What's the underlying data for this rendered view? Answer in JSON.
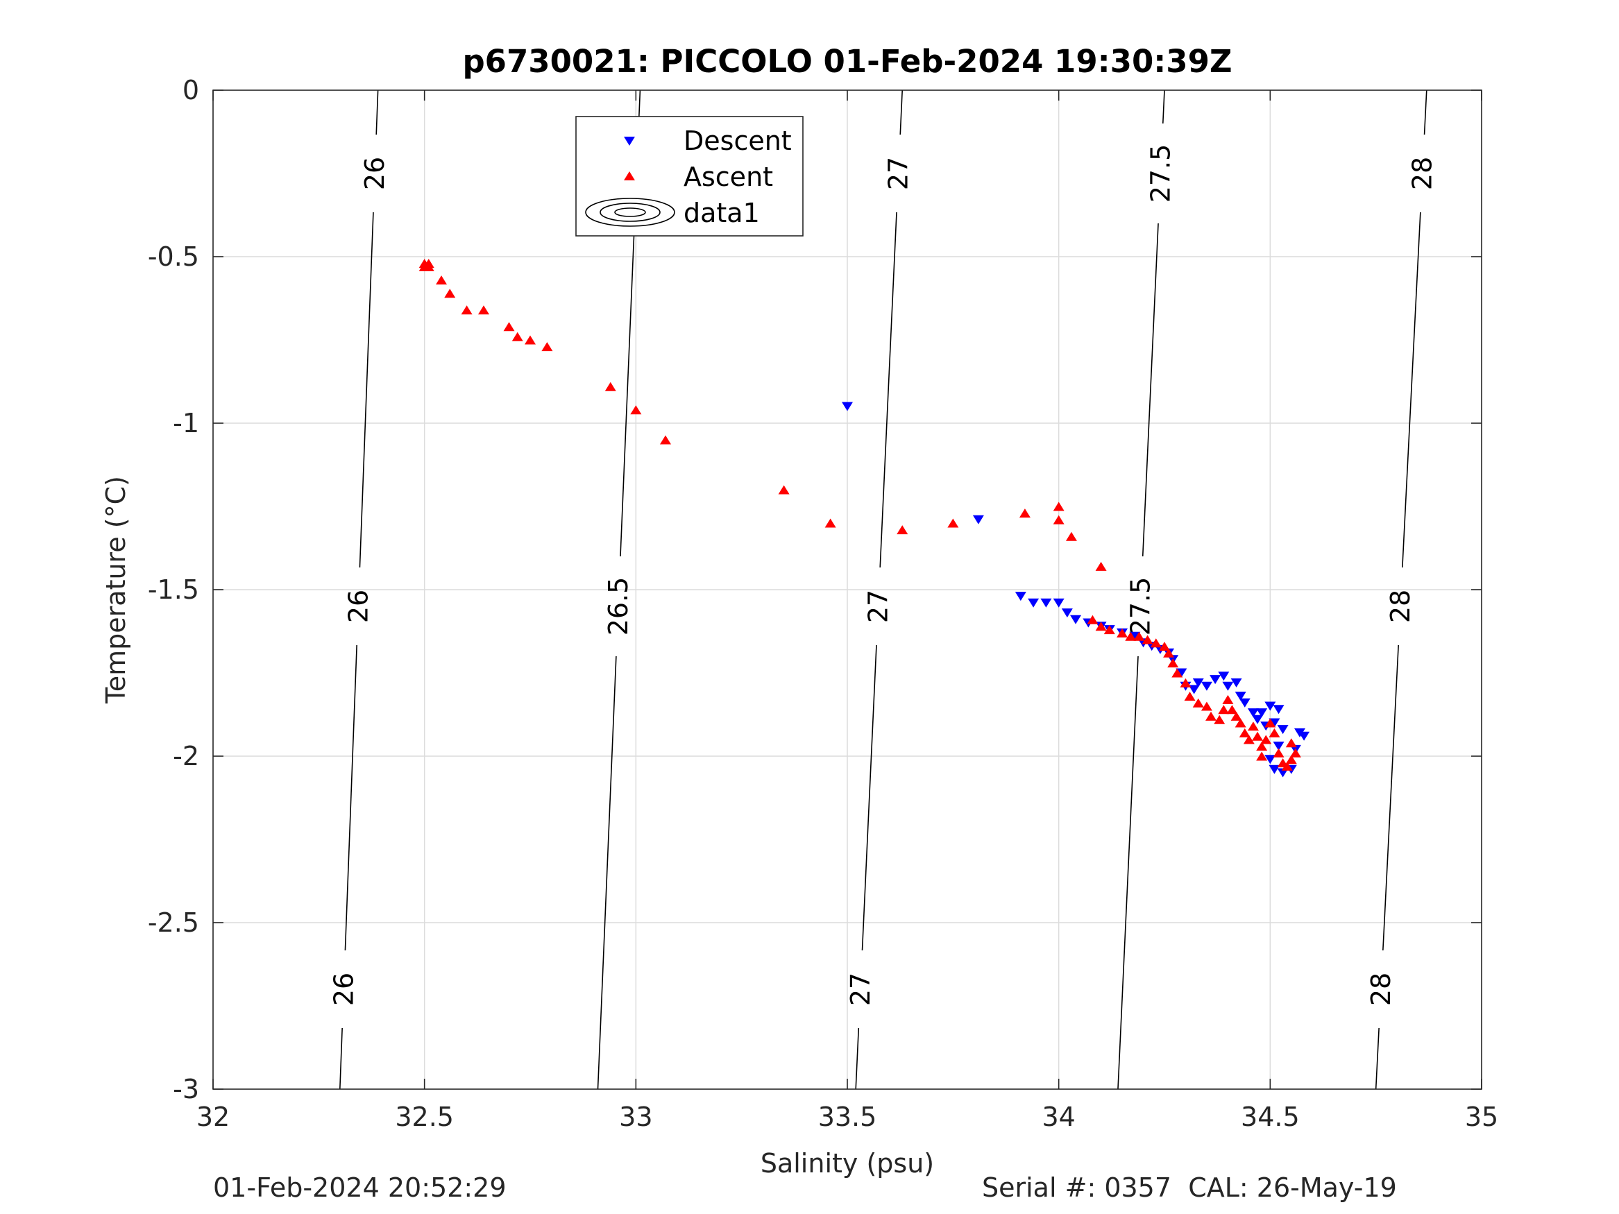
{
  "chart_data": {
    "type": "scatter",
    "title": "p6730021: PICCOLO 01-Feb-2024 19:30:39Z",
    "xlabel": "Salinity (psu)",
    "ylabel": "Temperature (°C)",
    "xlim": [
      32,
      35
    ],
    "ylim": [
      -3,
      0
    ],
    "xticks": [
      32,
      32.5,
      33,
      33.5,
      34,
      34.5,
      35
    ],
    "xtick_labels": [
      "32",
      "32.5",
      "33",
      "33.5",
      "34",
      "34.5",
      "35"
    ],
    "yticks": [
      0,
      -0.5,
      -1,
      -1.5,
      -2,
      -2.5,
      -3
    ],
    "ytick_labels": [
      "0",
      "-0.5",
      "-1",
      "-1.5",
      "-2",
      "-2.5",
      "-3"
    ],
    "grid": true,
    "legend_position": "top-center",
    "legend": [
      {
        "name": "Descent",
        "marker": "triangle-down",
        "color": "#0000ff"
      },
      {
        "name": "Ascent",
        "marker": "triangle-up",
        "color": "#ff0000"
      },
      {
        "name": "data1",
        "marker": "contour",
        "color": "#000000"
      }
    ],
    "isopycnals": [
      {
        "label": "26",
        "top_s": 32.39,
        "bottom_s": 32.3,
        "label_temps": [
          -0.25,
          -1.55,
          -2.7
        ]
      },
      {
        "label": "26.5",
        "top_s": 33.01,
        "bottom_s": 32.91,
        "label_temps": [
          -0.25,
          -1.55
        ]
      },
      {
        "label": "27",
        "top_s": 33.63,
        "bottom_s": 33.52,
        "label_temps": [
          -0.25,
          -1.55,
          -2.7
        ]
      },
      {
        "label": "27.5",
        "top_s": 34.25,
        "bottom_s": 34.14,
        "label_temps": [
          -0.25,
          -1.55
        ]
      },
      {
        "label": "28",
        "top_s": 34.87,
        "bottom_s": 34.75,
        "label_temps": [
          -0.25,
          -1.55,
          -2.7
        ]
      }
    ],
    "series": [
      {
        "name": "Descent",
        "marker": "triangle-down",
        "color": "#0000ff",
        "points": [
          [
            33.5,
            -0.95
          ],
          [
            33.81,
            -1.29
          ],
          [
            33.91,
            -1.52
          ],
          [
            33.94,
            -1.54
          ],
          [
            33.97,
            -1.54
          ],
          [
            34.0,
            -1.54
          ],
          [
            34.02,
            -1.57
          ],
          [
            34.04,
            -1.59
          ],
          [
            34.07,
            -1.6
          ],
          [
            34.1,
            -1.61
          ],
          [
            34.12,
            -1.62
          ],
          [
            34.15,
            -1.63
          ],
          [
            34.18,
            -1.64
          ],
          [
            34.2,
            -1.66
          ],
          [
            34.22,
            -1.67
          ],
          [
            34.24,
            -1.68
          ],
          [
            34.26,
            -1.69
          ],
          [
            34.27,
            -1.71
          ],
          [
            34.29,
            -1.75
          ],
          [
            34.3,
            -1.79
          ],
          [
            34.32,
            -1.8
          ],
          [
            34.33,
            -1.78
          ],
          [
            34.35,
            -1.79
          ],
          [
            34.37,
            -1.77
          ],
          [
            34.39,
            -1.76
          ],
          [
            34.4,
            -1.79
          ],
          [
            34.42,
            -1.78
          ],
          [
            34.43,
            -1.82
          ],
          [
            34.44,
            -1.84
          ],
          [
            34.46,
            -1.87
          ],
          [
            34.47,
            -1.89
          ],
          [
            34.48,
            -1.87
          ],
          [
            34.49,
            -1.91
          ],
          [
            34.5,
            -1.85
          ],
          [
            34.51,
            -1.9
          ],
          [
            34.52,
            -1.86
          ],
          [
            34.53,
            -1.92
          ],
          [
            34.52,
            -1.97
          ],
          [
            34.5,
            -2.01
          ],
          [
            34.51,
            -2.04
          ],
          [
            34.53,
            -2.05
          ],
          [
            34.55,
            -2.04
          ],
          [
            34.56,
            -1.98
          ],
          [
            34.57,
            -1.93
          ],
          [
            34.58,
            -1.94
          ]
        ]
      },
      {
        "name": "Ascent",
        "marker": "triangle-up",
        "color": "#ff0000",
        "points": [
          [
            32.5,
            -0.52
          ],
          [
            32.51,
            -0.53
          ],
          [
            32.5,
            -0.53
          ],
          [
            32.51,
            -0.52
          ],
          [
            32.54,
            -0.57
          ],
          [
            32.56,
            -0.61
          ],
          [
            32.6,
            -0.66
          ],
          [
            32.64,
            -0.66
          ],
          [
            32.7,
            -0.71
          ],
          [
            32.72,
            -0.74
          ],
          [
            32.75,
            -0.75
          ],
          [
            32.79,
            -0.77
          ],
          [
            32.94,
            -0.89
          ],
          [
            33.0,
            -0.96
          ],
          [
            33.07,
            -1.05
          ],
          [
            33.35,
            -1.2
          ],
          [
            33.46,
            -1.3
          ],
          [
            33.63,
            -1.32
          ],
          [
            33.75,
            -1.3
          ],
          [
            33.92,
            -1.27
          ],
          [
            34.0,
            -1.25
          ],
          [
            34.0,
            -1.29
          ],
          [
            34.03,
            -1.34
          ],
          [
            34.1,
            -1.43
          ],
          [
            34.08,
            -1.59
          ],
          [
            34.1,
            -1.61
          ],
          [
            34.12,
            -1.62
          ],
          [
            34.15,
            -1.63
          ],
          [
            34.17,
            -1.64
          ],
          [
            34.19,
            -1.64
          ],
          [
            34.21,
            -1.65
          ],
          [
            34.23,
            -1.66
          ],
          [
            34.25,
            -1.67
          ],
          [
            34.26,
            -1.69
          ],
          [
            34.27,
            -1.72
          ],
          [
            34.28,
            -1.75
          ],
          [
            34.3,
            -1.78
          ],
          [
            34.31,
            -1.82
          ],
          [
            34.33,
            -1.84
          ],
          [
            34.35,
            -1.85
          ],
          [
            34.36,
            -1.88
          ],
          [
            34.38,
            -1.89
          ],
          [
            34.39,
            -1.86
          ],
          [
            34.4,
            -1.83
          ],
          [
            34.41,
            -1.86
          ],
          [
            34.42,
            -1.88
          ],
          [
            34.43,
            -1.9
          ],
          [
            34.44,
            -1.93
          ],
          [
            34.45,
            -1.95
          ],
          [
            34.46,
            -1.91
          ],
          [
            34.47,
            -1.94
          ],
          [
            34.48,
            -1.97
          ],
          [
            34.48,
            -2.0
          ],
          [
            34.49,
            -1.95
          ],
          [
            34.5,
            -1.9
          ],
          [
            34.51,
            -1.93
          ],
          [
            34.52,
            -1.99
          ],
          [
            34.53,
            -2.02
          ],
          [
            34.54,
            -2.03
          ],
          [
            34.55,
            -2.01
          ],
          [
            34.56,
            -1.99
          ],
          [
            34.55,
            -1.96
          ]
        ]
      }
    ],
    "footer_left": "01-Feb-2024 20:52:29",
    "footer_right": "Serial #: 0357  CAL: 26-May-19"
  }
}
